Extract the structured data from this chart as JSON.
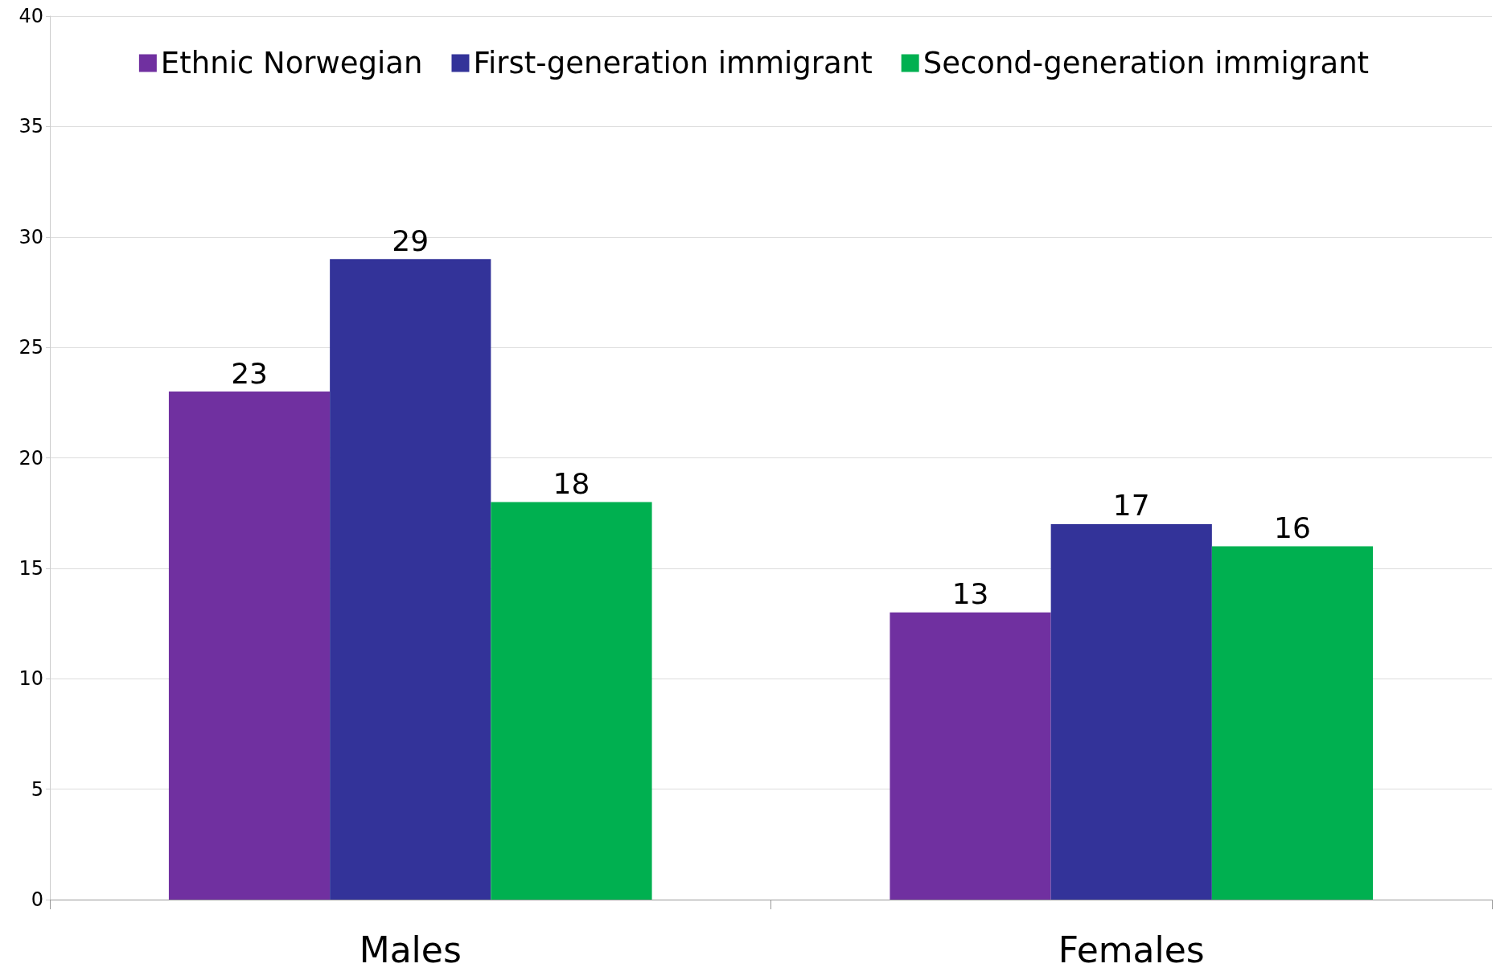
{
  "chart_data": {
    "type": "bar",
    "categories": [
      "Males",
      "Females"
    ],
    "series": [
      {
        "name": "Ethnic Norwegian",
        "color": "#7030a0",
        "values": [
          23,
          13
        ]
      },
      {
        "name": "First-generation immigrant",
        "color": "#333399",
        "values": [
          29,
          17
        ]
      },
      {
        "name": "Second-generation immigrant",
        "color": "#00b050",
        "values": [
          18,
          16
        ]
      }
    ],
    "ylim": [
      0,
      40
    ],
    "yticks": [
      0,
      5,
      10,
      15,
      20,
      25,
      30,
      35,
      40
    ],
    "grid": "y",
    "legend": "top",
    "data_labels": true
  }
}
